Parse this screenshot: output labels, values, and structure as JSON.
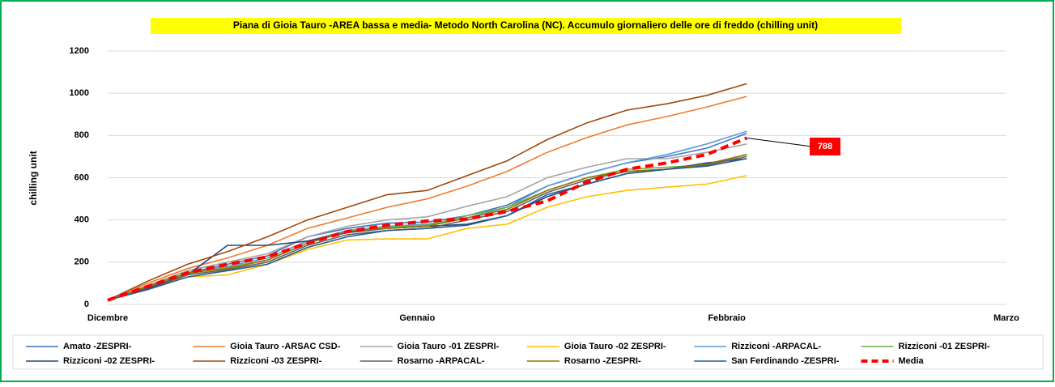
{
  "chart_data": {
    "type": "line",
    "title": "Piana di Gioia Tauro -AREA bassa e media- Metodo North Carolina (NC). Accumulo  giornaliero delle ore di freddo (chilling unit)",
    "y_label": "chilling unit",
    "x": [
      0,
      4,
      8,
      12,
      16,
      20,
      24,
      28,
      32,
      36,
      40,
      44,
      48,
      52,
      56,
      60,
      64
    ],
    "xlim": [
      0,
      90
    ],
    "xticks": [
      {
        "value": 0,
        "label": "Dicembre"
      },
      {
        "value": 31,
        "label": "Gennaio"
      },
      {
        "value": 62,
        "label": "Febbraio"
      },
      {
        "value": 90,
        "label": "Marzo"
      }
    ],
    "ylim": [
      0,
      1200
    ],
    "yticks": [
      0,
      200,
      400,
      600,
      800,
      1000,
      1200
    ],
    "grid": true,
    "legend": "bottom",
    "series": [
      {
        "name": "Amato -ZESPRI-",
        "color": "#4472c4",
        "values": [
          20,
          85,
          150,
          190,
          230,
          320,
          360,
          385,
          390,
          420,
          470,
          560,
          620,
          670,
          700,
          740,
          810
        ]
      },
      {
        "name": "Gioia Tauro -ARSAC CSD-",
        "color": "#ed7d31",
        "values": [
          20,
          100,
          170,
          220,
          280,
          360,
          410,
          460,
          500,
          560,
          630,
          720,
          790,
          850,
          890,
          935,
          985
        ]
      },
      {
        "name": "Gioia Tauro -01 ZESPRI-",
        "color": "#a5a5a5",
        "values": [
          20,
          90,
          160,
          200,
          240,
          320,
          370,
          400,
          415,
          465,
          510,
          600,
          650,
          690,
          690,
          720,
          760
        ]
      },
      {
        "name": "Gioia Tauro -02 ZESPRI-",
        "color": "#ffc000",
        "values": [
          20,
          80,
          130,
          140,
          190,
          260,
          305,
          310,
          310,
          360,
          380,
          460,
          510,
          540,
          555,
          570,
          610
        ]
      },
      {
        "name": "Rizziconi -ARPACAL-",
        "color": "#5b9bd5",
        "values": [
          20,
          85,
          150,
          180,
          220,
          300,
          350,
          370,
          380,
          410,
          460,
          560,
          620,
          670,
          710,
          760,
          820
        ]
      },
      {
        "name": "Rizziconi -01 ZESPRI-",
        "color": "#70ad47",
        "values": [
          20,
          80,
          145,
          175,
          210,
          290,
          345,
          365,
          375,
          420,
          460,
          540,
          600,
          640,
          650,
          660,
          710
        ]
      },
      {
        "name": "Rizziconi -02 ZESPRI-",
        "color": "#264478",
        "values": [
          20,
          75,
          140,
          280,
          280,
          300,
          340,
          360,
          370,
          380,
          420,
          510,
          570,
          620,
          640,
          670,
          690
        ]
      },
      {
        "name": "Rizziconi -03 ZESPRI-",
        "color": "#9e480e",
        "values": [
          20,
          110,
          190,
          250,
          320,
          400,
          460,
          520,
          540,
          610,
          680,
          780,
          860,
          920,
          950,
          990,
          1045
        ]
      },
      {
        "name": "Rosarno -ARPACAL-",
        "color": "#636363",
        "values": [
          20,
          80,
          140,
          165,
          200,
          280,
          330,
          350,
          360,
          400,
          440,
          530,
          590,
          630,
          640,
          660,
          700
        ]
      },
      {
        "name": "Rosarno -ZESPRI-",
        "color": "#997300",
        "values": [
          20,
          85,
          150,
          170,
          210,
          290,
          345,
          360,
          370,
          410,
          450,
          540,
          600,
          630,
          640,
          665,
          710
        ]
      },
      {
        "name": "San Ferdinando -ZESPRI-",
        "color": "#255e91",
        "values": [
          20,
          70,
          130,
          160,
          190,
          270,
          320,
          350,
          360,
          375,
          420,
          520,
          570,
          620,
          640,
          655,
          690
        ]
      },
      {
        "name": "Media",
        "color": "#ff0000",
        "line_style": "dashed",
        "values": [
          20,
          85,
          150,
          190,
          225,
          290,
          345,
          375,
          395,
          405,
          440,
          490,
          580,
          640,
          670,
          710,
          788
        ]
      }
    ]
  }
}
